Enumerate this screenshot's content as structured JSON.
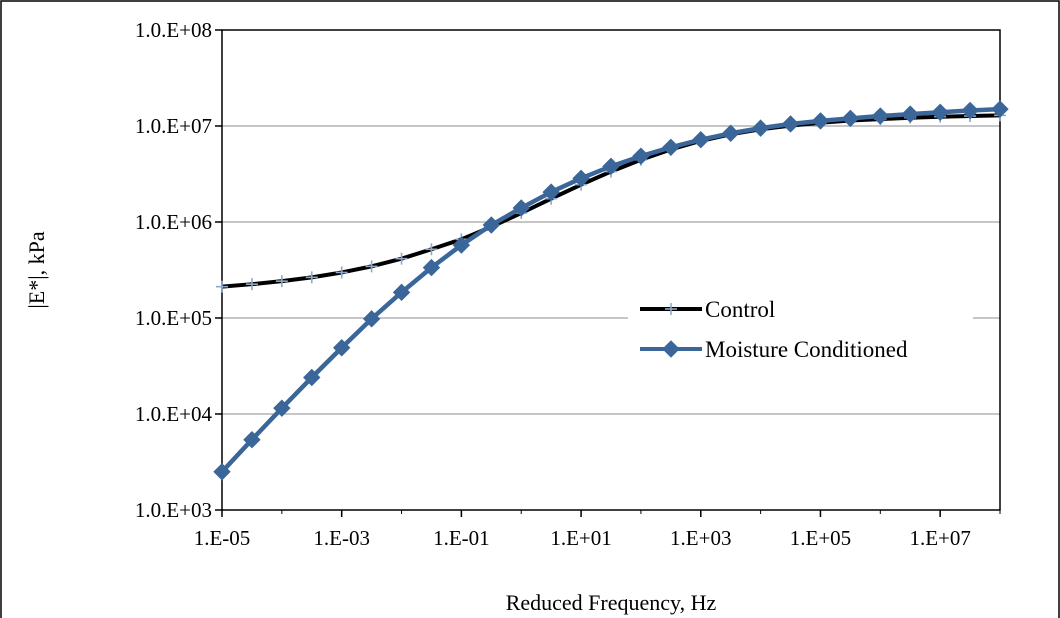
{
  "chart_data": {
    "type": "line",
    "title": "",
    "xlabel": "Reduced Frequency, Hz",
    "ylabel": "|E*|, kPa",
    "x_scale": "log",
    "y_scale": "log",
    "xlim": [
      1e-05,
      100000000
    ],
    "ylim": [
      1000,
      100000000
    ],
    "x_ticks": [
      {
        "value": 1e-05,
        "label": "1.E-05"
      },
      {
        "value": 0.001,
        "label": "1.E-03"
      },
      {
        "value": 0.1,
        "label": "1.E-01"
      },
      {
        "value": 10,
        "label": "1.E+01"
      },
      {
        "value": 1000,
        "label": "1.E+03"
      },
      {
        "value": 100000,
        "label": "1.E+05"
      },
      {
        "value": 10000000,
        "label": "1.E+07"
      }
    ],
    "y_ticks": [
      {
        "value": 1000,
        "label": "1.0.E+03"
      },
      {
        "value": 10000,
        "label": "1.0.E+04"
      },
      {
        "value": 100000,
        "label": "1.0.E+05"
      },
      {
        "value": 1000000,
        "label": "1.0.E+06"
      },
      {
        "value": 10000000,
        "label": "1.0.E+07"
      },
      {
        "value": 100000000,
        "label": "1.0.E+08"
      }
    ],
    "grid": "horizontal",
    "legend_position": "center-right",
    "x": [
      1e-05,
      3.162e-05,
      0.0001,
      0.0003162,
      0.001,
      0.003162,
      0.01,
      0.03162,
      0.1,
      0.3162,
      1,
      3.162,
      10,
      31.62,
      100,
      316.2,
      1000,
      3162,
      10000,
      31620,
      100000,
      316200,
      1000000,
      3162000,
      10000000,
      31620000,
      100000000
    ],
    "series": [
      {
        "name": "Control",
        "color": "#000000",
        "marker": "plus",
        "marker_color": "#8fa8c8",
        "values": [
          212000,
          225000,
          242000,
          265000,
          298000,
          345000,
          415000,
          520000,
          660000,
          890000,
          1240000,
          1750000,
          2450000,
          3350000,
          4450000,
          5700000,
          7000000,
          8200000,
          9250000,
          10100000,
          10800000,
          11400000,
          11800000,
          12200000,
          12500000,
          12700000,
          12900000
        ]
      },
      {
        "name": "Moisture Conditioned",
        "color": "#3b6699",
        "marker": "diamond",
        "marker_color": "#3b6699",
        "values": [
          2500,
          5400,
          11500,
          24000,
          49000,
          98000,
          185000,
          335000,
          575000,
          930000,
          1400000,
          2050000,
          2850000,
          3800000,
          4850000,
          6000000,
          7200000,
          8400000,
          9500000,
          10500000,
          11300000,
          12000000,
          12700000,
          13300000,
          13900000,
          14500000,
          15000000
        ]
      }
    ]
  }
}
